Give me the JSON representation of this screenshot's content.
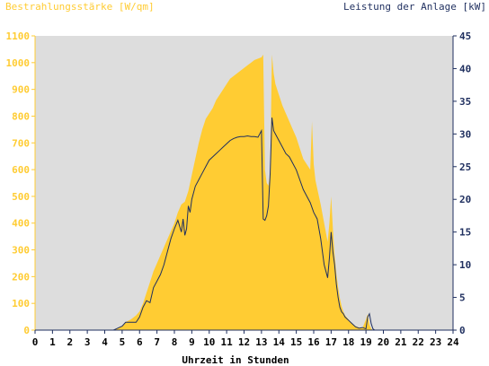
{
  "chart_data": {
    "type": "area",
    "left_axis_title": "Bestrahlungsstärke [W/qm]",
    "right_axis_title": "Leistung der Anlage [kW]",
    "xlabel": "Uhrzeit in Stunden",
    "xlim": [
      0,
      24
    ],
    "ylim_left": [
      0,
      1100
    ],
    "ylim_right": [
      0,
      45
    ],
    "x_ticks": [
      "0",
      "1",
      "2",
      "3",
      "4",
      "5",
      "6",
      "7",
      "8",
      "9",
      "10",
      "11",
      "12",
      "13",
      "14",
      "15",
      "16",
      "17",
      "18",
      "19",
      "20",
      "21",
      "22",
      "23",
      "24"
    ],
    "y_left_ticks": [
      "0",
      "100",
      "200",
      "300",
      "400",
      "500",
      "600",
      "700",
      "800",
      "900",
      "1000",
      "1100"
    ],
    "y_right_ticks": [
      "0",
      "5",
      "10",
      "15",
      "20",
      "25",
      "30",
      "35",
      "40",
      "45"
    ],
    "grid": false,
    "series": [
      {
        "name": "Bestrahlungsstärke",
        "axis": "left",
        "style": "filled-area",
        "color": "#FFCC33",
        "x": [
          0,
          4.5,
          5.0,
          5.2,
          5.5,
          5.8,
          6.0,
          6.2,
          6.4,
          6.6,
          6.8,
          7.0,
          7.2,
          7.4,
          7.6,
          7.8,
          8.0,
          8.2,
          8.4,
          8.6,
          8.8,
          9.0,
          9.2,
          9.4,
          9.6,
          9.8,
          10.0,
          10.2,
          10.4,
          10.6,
          10.8,
          11.0,
          11.2,
          11.4,
          11.6,
          11.8,
          12.0,
          12.2,
          12.4,
          12.6,
          12.8,
          13.0,
          13.1,
          13.2,
          13.3,
          13.4,
          13.5,
          13.6,
          13.7,
          13.8,
          13.9,
          14.0,
          14.1,
          14.2,
          14.4,
          14.6,
          14.8,
          15.0,
          15.2,
          15.4,
          15.6,
          15.8,
          15.9,
          16.0,
          16.1,
          16.2,
          16.4,
          16.6,
          16.8,
          16.9,
          17.0,
          17.1,
          17.2,
          17.3,
          17.4,
          17.5,
          17.6,
          17.7,
          17.8,
          18.0,
          18.2,
          18.4,
          18.6,
          18.8,
          19.0,
          19.1,
          19.2,
          19.3,
          19.4,
          19.5,
          19.6,
          20.0,
          24
        ],
        "y": [
          0,
          0,
          15,
          30,
          40,
          55,
          70,
          100,
          140,
          180,
          220,
          250,
          280,
          310,
          340,
          370,
          400,
          440,
          470,
          480,
          520,
          580,
          640,
          700,
          750,
          790,
          810,
          830,
          860,
          880,
          900,
          920,
          940,
          950,
          960,
          970,
          980,
          990,
          1000,
          1010,
          1015,
          1020,
          1030,
          600,
          550,
          540,
          580,
          1030,
          960,
          920,
          900,
          880,
          860,
          840,
          810,
          780,
          750,
          720,
          680,
          640,
          620,
          600,
          780,
          620,
          560,
          530,
          470,
          400,
          330,
          400,
          500,
          380,
          280,
          210,
          160,
          120,
          90,
          70,
          55,
          40,
          25,
          15,
          10,
          8,
          40,
          60,
          20,
          5,
          0,
          0,
          0,
          0,
          0
        ]
      },
      {
        "name": "Leistung",
        "axis": "right",
        "style": "line",
        "color": "#1F2F5F",
        "x": [
          0,
          4.5,
          5.0,
          5.2,
          5.5,
          5.8,
          6.0,
          6.2,
          6.4,
          6.6,
          6.8,
          7.0,
          7.2,
          7.4,
          7.6,
          7.8,
          8.0,
          8.2,
          8.4,
          8.5,
          8.6,
          8.7,
          8.8,
          8.9,
          9.0,
          9.2,
          9.4,
          9.6,
          9.8,
          10.0,
          10.2,
          10.4,
          10.6,
          10.8,
          11.0,
          11.2,
          11.4,
          11.6,
          11.8,
          12.0,
          12.2,
          12.4,
          12.6,
          12.8,
          13.0,
          13.1,
          13.2,
          13.3,
          13.4,
          13.5,
          13.6,
          13.7,
          13.8,
          13.9,
          14.0,
          14.2,
          14.4,
          14.6,
          14.8,
          15.0,
          15.2,
          15.4,
          15.6,
          15.8,
          16.0,
          16.2,
          16.4,
          16.6,
          16.8,
          16.9,
          17.0,
          17.1,
          17.2,
          17.3,
          17.4,
          17.5,
          17.6,
          17.7,
          17.8,
          18.0,
          18.2,
          18.4,
          18.6,
          18.8,
          19.0,
          19.1,
          19.2,
          19.3,
          19.4,
          19.5,
          19.6,
          20.0,
          24
        ],
        "y": [
          0,
          0,
          0.6,
          1.2,
          1.2,
          1.2,
          2.0,
          3.5,
          4.5,
          4.2,
          6.5,
          7.5,
          8.5,
          10.0,
          12.0,
          14.0,
          15.5,
          16.8,
          15.0,
          17.0,
          14.5,
          15.5,
          19.0,
          18.0,
          20.0,
          22.0,
          23.0,
          24.0,
          25.0,
          26.0,
          26.5,
          27.0,
          27.5,
          28.0,
          28.5,
          29.0,
          29.3,
          29.5,
          29.6,
          29.6,
          29.7,
          29.6,
          29.6,
          29.5,
          30.5,
          17.0,
          16.8,
          17.5,
          19.0,
          24.0,
          32.5,
          30.5,
          30.0,
          29.5,
          29.0,
          28.0,
          27.0,
          26.5,
          25.5,
          24.5,
          23.0,
          21.5,
          20.5,
          19.5,
          18.0,
          17.0,
          14.0,
          10.0,
          8.0,
          11.0,
          15.0,
          12.0,
          10.0,
          7.0,
          5.0,
          3.5,
          2.8,
          2.5,
          2.0,
          1.5,
          1.0,
          0.5,
          0.3,
          0.4,
          0.2,
          2.0,
          2.5,
          1.0,
          0.2,
          0,
          0,
          0,
          0
        ]
      }
    ]
  },
  "colors": {
    "plot_background": "#DDDDDD",
    "left_axis": "#FFCC33",
    "right_axis": "#1F2F5F",
    "x_axis_text": "#000000"
  }
}
